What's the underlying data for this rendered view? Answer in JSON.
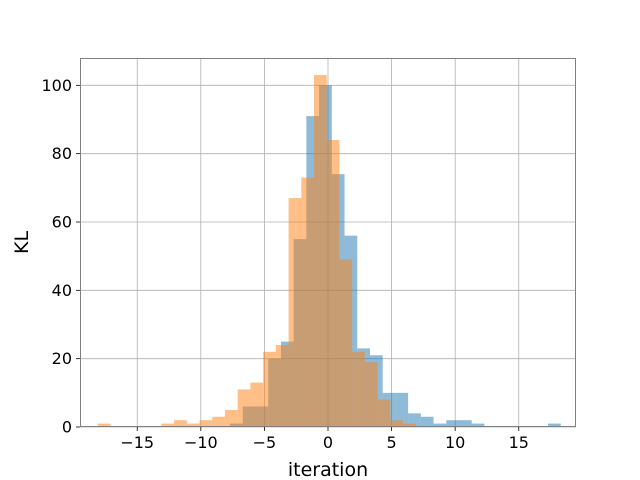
{
  "chart_data": {
    "type": "bar",
    "subtype": "histogram",
    "title": "",
    "xlabel": "iteration",
    "ylabel": "KL",
    "xlim": [
      -19.5,
      19.5
    ],
    "ylim": [
      0,
      108
    ],
    "xticks": [
      -15,
      -10,
      -5,
      0,
      5,
      10,
      15
    ],
    "xtick_labels": [
      "−15",
      "−10",
      "−5",
      "0",
      "5",
      "10",
      "15"
    ],
    "yticks": [
      0,
      20,
      40,
      60,
      80,
      100
    ],
    "ytick_labels": [
      "0",
      "20",
      "40",
      "60",
      "80",
      "100"
    ],
    "grid": true,
    "legend": "none",
    "series": [
      {
        "color": "#1f77b4",
        "opacity": 0.5,
        "bin_edges": [
          -7.7,
          -6.7,
          -5.7,
          -4.7,
          -3.7,
          -2.7,
          -1.7,
          -0.7,
          0.3,
          1.3,
          2.3,
          3.3,
          4.3,
          5.3,
          6.3,
          7.3,
          8.3,
          9.3,
          10.3,
          11.3,
          12.3,
          13.3,
          14.3,
          15.3,
          16.3,
          17.3,
          18.3
        ],
        "counts": [
          1,
          6,
          6,
          20,
          25,
          55,
          91,
          100,
          74,
          56,
          23,
          21,
          10,
          10,
          4,
          3,
          1,
          2,
          2,
          1,
          0,
          0,
          0,
          0,
          0,
          1
        ]
      },
      {
        "color": "#ff7f0e",
        "opacity": 0.5,
        "bin_edges": [
          -18.1,
          -17.1,
          -16.1,
          -15.1,
          -14.1,
          -13.1,
          -12.1,
          -11.1,
          -10.1,
          -9.1,
          -8.1,
          -7.1,
          -6.1,
          -5.1,
          -4.1,
          -3.1,
          -2.1,
          -1.1,
          -0.1,
          0.9,
          1.9,
          2.9,
          3.9,
          4.9,
          5.9,
          6.9
        ],
        "counts": [
          1,
          0,
          0,
          0,
          0,
          1,
          2,
          1,
          2,
          3,
          5,
          11,
          13,
          22,
          24,
          67,
          73,
          103,
          84,
          49,
          22,
          19,
          8,
          2,
          1
        ]
      }
    ]
  }
}
